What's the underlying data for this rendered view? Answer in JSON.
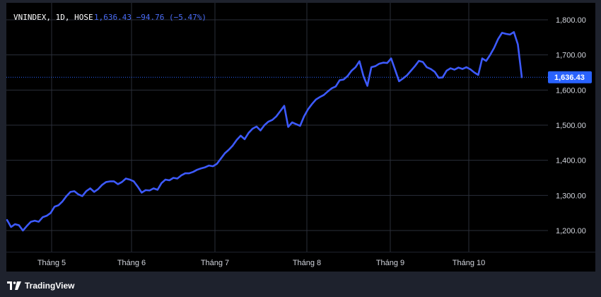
{
  "header": {
    "symbol": "VNINDEX, 1D, HOSE",
    "quote": "1,636.43  −94.76 (−5.47%)"
  },
  "price_tag": "1,636.43",
  "footer": {
    "brand": "TradingView"
  },
  "colors": {
    "background": "#000000",
    "frame": "#1e222d",
    "line": "#3d5afe",
    "grid": "#2a2e39",
    "last_price_tag": "#2962ff",
    "text": "#d1d4dc"
  },
  "chart_data": {
    "type": "line",
    "title": "",
    "xlabel": "",
    "ylabel": "",
    "x_tick_labels": [
      "Tháng 5",
      "Tháng 6",
      "Tháng 7",
      "Tháng 8",
      "Tháng 9",
      "Tháng 10"
    ],
    "y_tick_labels": [
      "1,800.00",
      "1,700.00",
      "1,600.00",
      "1,500.00",
      "1,400.00",
      "1,300.00",
      "1,200.00"
    ],
    "y_ticks": [
      1800,
      1700,
      1600,
      1500,
      1400,
      1300,
      1200
    ],
    "ylim": [
      1140,
      1860
    ],
    "grid": true,
    "last_value": 1636.43,
    "series": [
      {
        "values": [
          1230,
          1210,
          1218,
          1215,
          1200,
          1213,
          1225,
          1228,
          1225,
          1238,
          1242,
          1250,
          1268,
          1272,
          1283,
          1298,
          1310,
          1312,
          1303,
          1298,
          1312,
          1320,
          1310,
          1318,
          1330,
          1338,
          1340,
          1340,
          1332,
          1338,
          1348,
          1345,
          1340,
          1325,
          1308,
          1315,
          1314,
          1320,
          1316,
          1335,
          1345,
          1343,
          1350,
          1348,
          1357,
          1363,
          1363,
          1367,
          1373,
          1377,
          1380,
          1385,
          1383,
          1390,
          1405,
          1420,
          1430,
          1442,
          1458,
          1470,
          1460,
          1478,
          1490,
          1496,
          1485,
          1500,
          1510,
          1515,
          1525,
          1540,
          1555,
          1495,
          1508,
          1503,
          1498,
          1525,
          1545,
          1560,
          1573,
          1580,
          1586,
          1596,
          1605,
          1610,
          1628,
          1630,
          1640,
          1655,
          1665,
          1682,
          1640,
          1612,
          1665,
          1668,
          1675,
          1678,
          1677,
          1690,
          1658,
          1625,
          1633,
          1642,
          1655,
          1668,
          1683,
          1680,
          1665,
          1660,
          1652,
          1635,
          1636,
          1655,
          1662,
          1658,
          1664,
          1660,
          1665,
          1659,
          1650,
          1643,
          1690,
          1683,
          1700,
          1720,
          1745,
          1763,
          1760,
          1758,
          1765,
          1730,
          1636.43
        ]
      }
    ]
  }
}
